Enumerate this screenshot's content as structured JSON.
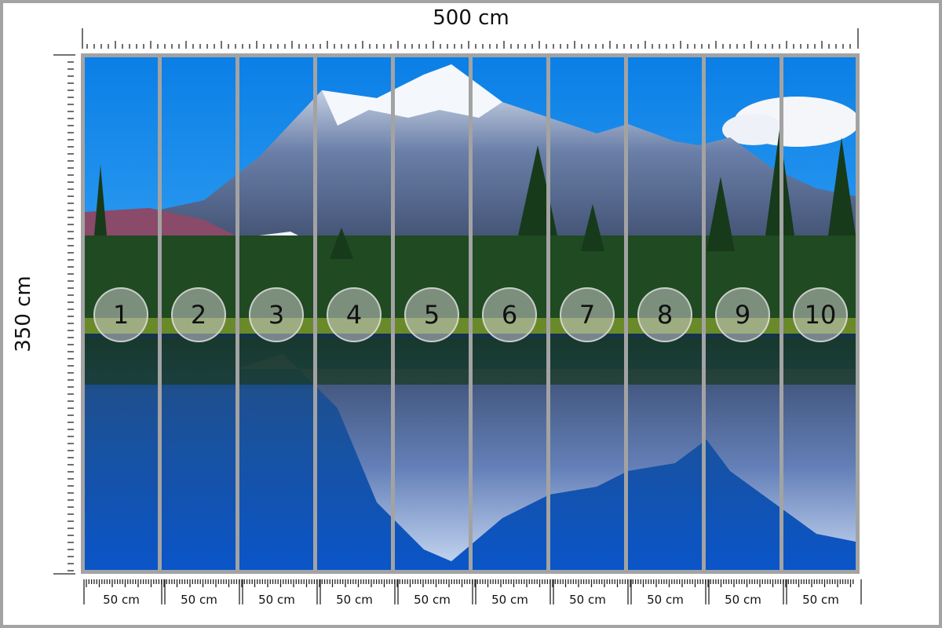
{
  "dimensions": {
    "width_label": "500 cm",
    "height_label": "350 cm"
  },
  "panels": [
    {
      "number": "1",
      "width_label": "50 cm"
    },
    {
      "number": "2",
      "width_label": "50 cm"
    },
    {
      "number": "3",
      "width_label": "50 cm"
    },
    {
      "number": "4",
      "width_label": "50 cm"
    },
    {
      "number": "5",
      "width_label": "50 cm"
    },
    {
      "number": "6",
      "width_label": "50 cm"
    },
    {
      "number": "7",
      "width_label": "50 cm"
    },
    {
      "number": "8",
      "width_label": "50 cm"
    },
    {
      "number": "9",
      "width_label": "50 cm"
    },
    {
      "number": "10",
      "width_label": "50 cm"
    }
  ],
  "colors": {
    "frame": "#a3a3a3",
    "sky": "#1a8ff0",
    "water": "#0a5cc8",
    "forest": "#1f4a22"
  }
}
